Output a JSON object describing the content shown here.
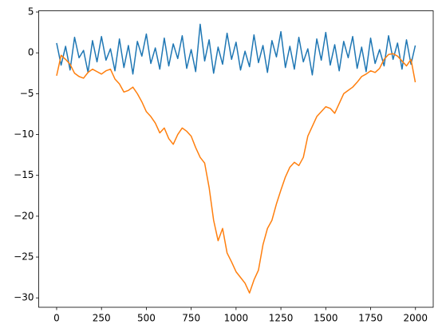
{
  "chart_data": {
    "type": "line",
    "x": [
      0,
      25,
      50,
      75,
      100,
      125,
      150,
      175,
      200,
      225,
      250,
      275,
      300,
      325,
      350,
      375,
      400,
      425,
      450,
      475,
      500,
      525,
      550,
      575,
      600,
      625,
      650,
      675,
      700,
      725,
      750,
      775,
      800,
      825,
      850,
      875,
      900,
      925,
      950,
      975,
      1000,
      1025,
      1050,
      1075,
      1100,
      1125,
      1150,
      1175,
      1200,
      1225,
      1250,
      1275,
      1300,
      1325,
      1350,
      1375,
      1400,
      1425,
      1450,
      1475,
      1500,
      1525,
      1550,
      1575,
      1600,
      1625,
      1650,
      1675,
      1700,
      1725,
      1750,
      1775,
      1800,
      1825,
      1850,
      1875,
      1900,
      1925,
      1950,
      1975,
      1999
    ],
    "series": [
      {
        "color": "#1f77b4",
        "values": [
          1.2,
          -1.5,
          0.8,
          -2.1,
          1.9,
          -0.6,
          0.3,
          -2.4,
          1.5,
          -1.1,
          2.0,
          -0.9,
          0.5,
          -2.2,
          1.7,
          -1.8,
          0.9,
          -2.6,
          1.4,
          -0.4,
          2.3,
          -1.3,
          0.6,
          -2.0,
          1.8,
          -1.6,
          1.1,
          -0.7,
          2.1,
          -1.9,
          0.4,
          -2.3,
          3.5,
          -1.0,
          1.6,
          -2.5,
          0.7,
          -1.4,
          2.4,
          -0.8,
          1.3,
          -2.1,
          0.2,
          -1.7,
          2.2,
          -1.2,
          0.9,
          -2.4,
          1.5,
          -0.5,
          2.6,
          -1.8,
          0.8,
          -2.0,
          1.9,
          -1.1,
          0.5,
          -2.7,
          1.7,
          -0.9,
          2.5,
          -1.5,
          1.0,
          -2.2,
          1.4,
          -0.6,
          2.0,
          -1.9,
          0.7,
          -2.3,
          1.8,
          -1.3,
          0.4,
          -1.6,
          2.1,
          -0.8,
          1.2,
          -2.0,
          1.6,
          -1.4,
          0.9
        ]
      },
      {
        "color": "#ff7f0e",
        "values": [
          -2.8,
          -0.3,
          -0.8,
          -1.4,
          -2.5,
          -2.9,
          -3.1,
          -2.4,
          -2.0,
          -2.3,
          -2.6,
          -2.2,
          -2.0,
          -3.2,
          -3.8,
          -4.8,
          -4.6,
          -4.2,
          -5.0,
          -6.0,
          -7.2,
          -7.8,
          -8.6,
          -9.8,
          -9.2,
          -10.5,
          -11.2,
          -10.0,
          -9.2,
          -9.6,
          -10.2,
          -11.6,
          -12.8,
          -13.5,
          -16.5,
          -20.5,
          -23.0,
          -21.5,
          -24.5,
          -25.6,
          -26.8,
          -27.5,
          -28.2,
          -29.4,
          -27.8,
          -26.6,
          -23.5,
          -21.5,
          -20.5,
          -18.5,
          -16.8,
          -15.2,
          -14.0,
          -13.4,
          -13.8,
          -12.8,
          -10.2,
          -9.0,
          -7.8,
          -7.2,
          -6.6,
          -6.8,
          -7.4,
          -6.2,
          -5.0,
          -4.6,
          -4.2,
          -3.6,
          -2.9,
          -2.6,
          -2.2,
          -2.4,
          -1.9,
          -0.8,
          -0.2,
          -0.1,
          -0.4,
          -1.0,
          -1.6,
          -0.8,
          -3.6
        ]
      }
    ],
    "xlim": [
      -99.95,
      2098.95
    ],
    "xticks": [
      0,
      250,
      500,
      750,
      1000,
      1250,
      1500,
      1750,
      2000
    ],
    "ylim": [
      -31.15,
      5.15
    ],
    "yticks": [
      {
        "value": -30,
        "label": "−30"
      },
      {
        "value": -25,
        "label": "−25"
      },
      {
        "value": -20,
        "label": "−20"
      },
      {
        "value": -15,
        "label": "−15"
      },
      {
        "value": -10,
        "label": "−10"
      },
      {
        "value": -5,
        "label": "−5"
      },
      0,
      5
    ]
  }
}
